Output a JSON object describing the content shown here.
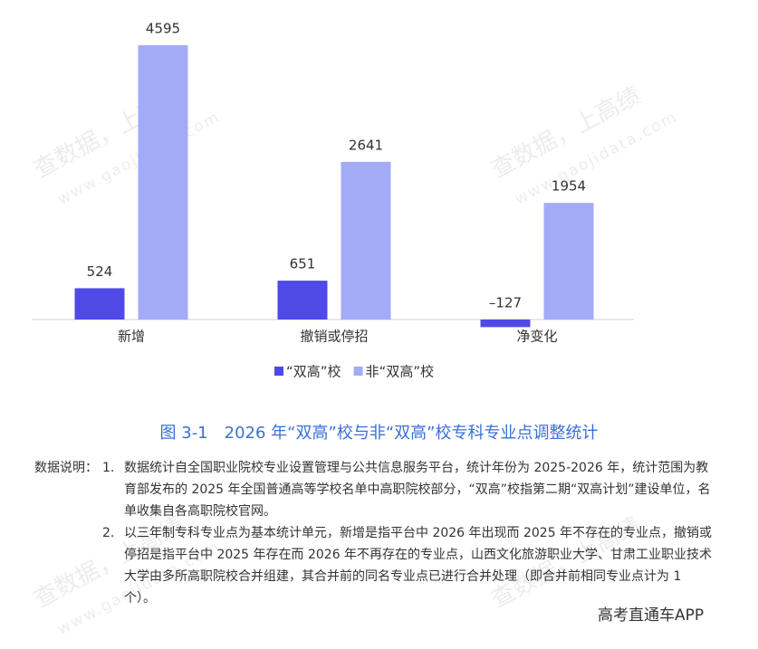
{
  "chart_data": {
    "type": "bar",
    "categories": [
      "新增",
      "撤销或停招",
      "净变化"
    ],
    "series": [
      {
        "name": "“双高”校",
        "color": "#4f4ae6",
        "values": [
          524,
          651,
          -127
        ],
        "value_labels": [
          "524",
          "651",
          "–127"
        ]
      },
      {
        "name": "非“双高”校",
        "color": "#a3abf7",
        "values": [
          4595,
          2641,
          1954
        ]
      }
    ]
  },
  "caption": "图 3-1　2026 年“双高”校与非“双高”校专科专业点调整统计",
  "notes": {
    "label": "数据说明：",
    "items": [
      {
        "number": "1.",
        "text": "数据统计自全国职业院校专业设置管理与公共信息服务平台，统计年份为 2025-2026 年，统计范围为教育部发布的 2025 年全国普通高等学校名单中高职院校部分，“双高”校指第二期“双高计划”建设单位，名单收集自各高职院校官网。"
      },
      {
        "number": "2.",
        "text": "以三年制专科专业点为基本统计单元，新增是指平台中 2026 年出现而 2025 年不存在的专业点，撤销或停招是指平台中 2025 年存在而 2026 年不再存在的专业点，山西文化旅游职业大学、甘肃工业职业技术大学由多所高职院校合并组建，其合并前的同名专业点已进行合并处理（即合并前相同专业点计为 1 个）。"
      }
    ]
  },
  "watermark": {
    "text": "查数据，上高绩",
    "url": "www.gaojidata.com"
  },
  "footer": "高考直通车APP"
}
